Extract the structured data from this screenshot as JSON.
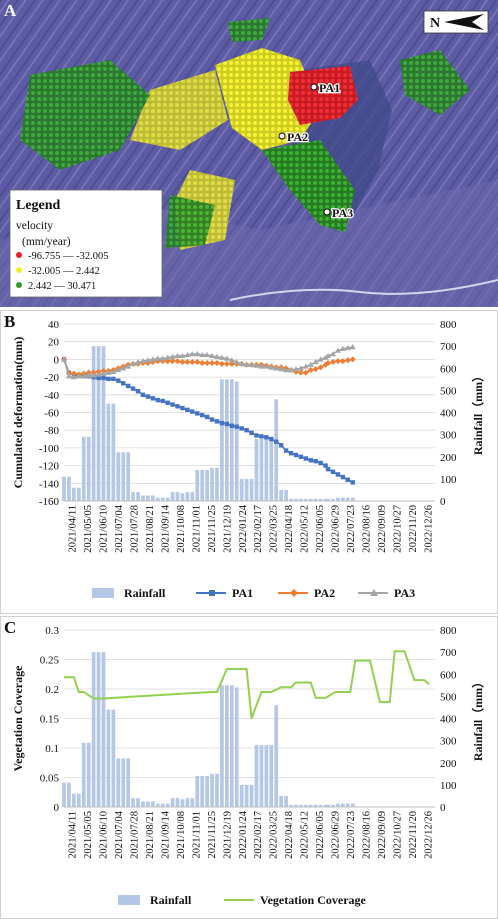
{
  "panel_a": {
    "panel_label": "A",
    "north_label": "N",
    "legend": {
      "title": "Legend",
      "subtitle": "velocity",
      "unit": "(mm/year)",
      "items": [
        {
          "label": "-96.755 — -32.005",
          "color": "#e8202a"
        },
        {
          "label": "-32.005 — 2.442",
          "color": "#f2ee2a"
        },
        {
          "label": "2.442 — 30.471",
          "color": "#2f9a2a"
        }
      ]
    },
    "markers": [
      "PA1",
      "PA2",
      "PA3"
    ],
    "colors": {
      "terrain": "#5a5aa0",
      "red_points": "#e8202a",
      "yellow_points": "#f2ee2a",
      "green_points": "#2f9a2a"
    }
  },
  "dates": [
    "2021/04/11",
    "2021/05/05",
    "2021/06/10",
    "2021/07/04",
    "2021/07/28",
    "2021/08/21",
    "2021/09/14",
    "2021/10/08",
    "2021/11/01",
    "2021/11/25",
    "2021/12/19",
    "2022/01/24",
    "2022/02/17",
    "2022/03/25",
    "2022/04/18",
    "2022/05/12",
    "2022/06/05",
    "2022/06/29",
    "2022/07/23",
    "2022/08/16",
    "2022/09/09",
    "2022/10/27",
    "2022/11/20",
    "2022/12/26"
  ],
  "chart_data": [
    {
      "type": "bar+line",
      "panel": "B",
      "x": [
        0,
        12,
        24,
        36,
        48,
        60,
        72,
        84,
        96,
        108,
        120,
        132,
        144,
        156,
        168,
        180,
        192,
        204,
        216,
        228,
        240,
        252,
        264,
        276,
        288,
        300,
        312,
        324,
        336,
        348,
        360,
        372,
        384,
        396,
        408,
        420,
        432,
        444,
        456,
        468,
        480,
        492,
        504,
        516,
        528,
        540,
        552,
        564,
        576,
        588,
        600,
        612,
        624,
        636,
        642,
        654,
        666,
        678,
        690,
        702
      ],
      "ylabel_left": "Cumulated deformation(mm)",
      "ylabel_right": "Rainfall（mm）",
      "ylim_left": [
        -160,
        40
      ],
      "yticks_left": [
        -160,
        -140,
        -120,
        -100,
        -80,
        -60,
        -40,
        -20,
        0,
        20,
        40
      ],
      "ylim_right": [
        0,
        800
      ],
      "yticks_right": [
        0,
        100,
        200,
        300,
        400,
        500,
        600,
        700,
        800
      ],
      "legend": [
        "Rainfall",
        "PA1",
        "PA2",
        "PA3"
      ],
      "series": [
        {
          "name": "Rainfall",
          "kind": "bar",
          "color": "#b4c7e7",
          "values": [
            110,
            110,
            60,
            60,
            290,
            290,
            700,
            700,
            700,
            440,
            440,
            220,
            220,
            220,
            40,
            40,
            25,
            25,
            25,
            15,
            15,
            15,
            40,
            40,
            35,
            40,
            40,
            140,
            140,
            140,
            150,
            150,
            550,
            550,
            550,
            540,
            100,
            100,
            100,
            280,
            280,
            280,
            280,
            460,
            50,
            50,
            10,
            10,
            10,
            10,
            10,
            10,
            10,
            10,
            10,
            10,
            15,
            15,
            15,
            15
          ]
        },
        {
          "name": "PA1",
          "kind": "line",
          "color": "#4472c4",
          "marker": "square",
          "values": [
            0,
            -15,
            -17,
            -18,
            -19,
            -19,
            -20,
            -21,
            -21,
            -22,
            -22,
            -24,
            -27,
            -30,
            -33,
            -36,
            -40,
            -42,
            -44,
            -46,
            -47,
            -49,
            -51,
            -53,
            -55,
            -57,
            -59,
            -61,
            -63,
            -65,
            -68,
            -70,
            -72,
            -73,
            -75,
            -76,
            -78,
            -80,
            -83,
            -86,
            -87,
            -88,
            -90,
            -93,
            -97,
            -103,
            -106,
            -108,
            -110,
            -112,
            -114,
            -115,
            -117,
            -120,
            -124,
            -127,
            -130,
            -133,
            -136,
            -139
          ]
        },
        {
          "name": "PA2",
          "kind": "line",
          "color": "#ed7d31",
          "marker": "diamond",
          "values": [
            0,
            -16,
            -16,
            -17,
            -16,
            -15,
            -15,
            -14,
            -13,
            -13,
            -12,
            -10,
            -8,
            -6,
            -5,
            -5,
            -4,
            -4,
            -3,
            -2,
            -2,
            -2,
            -2,
            -2,
            -3,
            -3,
            -3,
            -3,
            -4,
            -4,
            -4,
            -4,
            -5,
            -5,
            -5,
            -5,
            -5,
            -6,
            -6,
            -6,
            -6,
            -7,
            -8,
            -9,
            -9,
            -10,
            -12,
            -14,
            -15,
            -15,
            -12,
            -11,
            -9,
            -6,
            -4,
            -3,
            -2,
            -2,
            -1,
            0
          ]
        },
        {
          "name": "PA3",
          "kind": "line",
          "color": "#a5a5a5",
          "marker": "triangle",
          "values": [
            0,
            -19,
            -20,
            -19,
            -19,
            -18,
            -18,
            -17,
            -16,
            -15,
            -14,
            -12,
            -10,
            -8,
            -5,
            -3,
            -2,
            -1,
            0,
            1,
            1,
            2,
            3,
            4,
            4,
            5,
            6,
            6,
            5,
            5,
            4,
            3,
            2,
            1,
            -1,
            -3,
            -5,
            -6,
            -6,
            -7,
            -8,
            -8,
            -9,
            -10,
            -11,
            -12,
            -12,
            -11,
            -10,
            -8,
            -6,
            -3,
            0,
            2,
            4,
            6,
            10,
            12,
            13,
            14
          ]
        }
      ]
    },
    {
      "type": "bar+line",
      "panel": "C",
      "x": [
        0,
        12,
        24,
        36,
        48,
        60,
        72,
        84,
        96,
        108,
        120,
        132,
        144,
        156,
        168,
        180,
        192,
        204,
        216,
        228,
        240,
        252,
        264,
        276,
        288,
        300,
        312,
        324,
        336,
        348,
        360,
        372,
        384,
        396,
        408,
        420,
        432,
        444,
        456,
        468,
        480,
        492,
        504,
        516,
        528,
        540,
        552,
        564,
        576,
        588,
        600,
        612,
        624,
        636,
        642,
        654,
        666,
        678,
        690,
        702
      ],
      "ylabel_left": "Vegetation Coverage",
      "ylabel_right": "Rainfall（mm）",
      "ylim_left": [
        0,
        0.3
      ],
      "yticks_left": [
        "0",
        "0.05",
        "0.1",
        "0.15",
        "0.2",
        "0.25",
        "0.3"
      ],
      "ylim_right": [
        0,
        800
      ],
      "yticks_right": [
        0,
        100,
        200,
        300,
        400,
        500,
        600,
        700,
        800
      ],
      "legend": [
        "Rainfall",
        "Vegetation Coverage"
      ],
      "series": [
        {
          "name": "Rainfall",
          "kind": "bar",
          "color": "#b4c7e7",
          "values": [
            110,
            110,
            60,
            60,
            290,
            290,
            700,
            700,
            700,
            440,
            440,
            220,
            220,
            220,
            40,
            40,
            25,
            25,
            25,
            15,
            15,
            15,
            40,
            40,
            35,
            40,
            40,
            140,
            140,
            140,
            150,
            150,
            550,
            550,
            550,
            540,
            100,
            100,
            100,
            280,
            280,
            280,
            280,
            460,
            50,
            50,
            10,
            10,
            10,
            10,
            10,
            10,
            10,
            10,
            10,
            10,
            15,
            15,
            15,
            15
          ]
        },
        {
          "name": "Vegetation Coverage",
          "kind": "line",
          "color": "#92d050",
          "points": [
            [
              0,
              0.22
            ],
            [
              24,
              0.22
            ],
            [
              36,
              0.195
            ],
            [
              48,
              0.195
            ],
            [
              72,
              0.184
            ],
            [
              96,
              0.184
            ],
            [
              336,
              0.194
            ],
            [
              360,
              0.195
            ],
            [
              372,
              0.195
            ],
            [
              396,
              0.234
            ],
            [
              444,
              0.234
            ],
            [
              456,
              0.15
            ],
            [
              480,
              0.195
            ],
            [
              504,
              0.195
            ],
            [
              528,
              0.203
            ],
            [
              552,
              0.203
            ],
            [
              564,
              0.211
            ],
            [
              600,
              0.211
            ],
            [
              612,
              0.185
            ],
            [
              636,
              0.185
            ],
            [
              660,
              0.195
            ],
            [
              696,
              0.195
            ],
            [
              708,
              0.248
            ],
            [
              744,
              0.248
            ],
            [
              768,
              0.178
            ],
            [
              792,
              0.178
            ],
            [
              804,
              0.264
            ],
            [
              828,
              0.264
            ],
            [
              852,
              0.215
            ],
            [
              876,
              0.215
            ],
            [
              888,
              0.208
            ]
          ]
        }
      ]
    }
  ]
}
